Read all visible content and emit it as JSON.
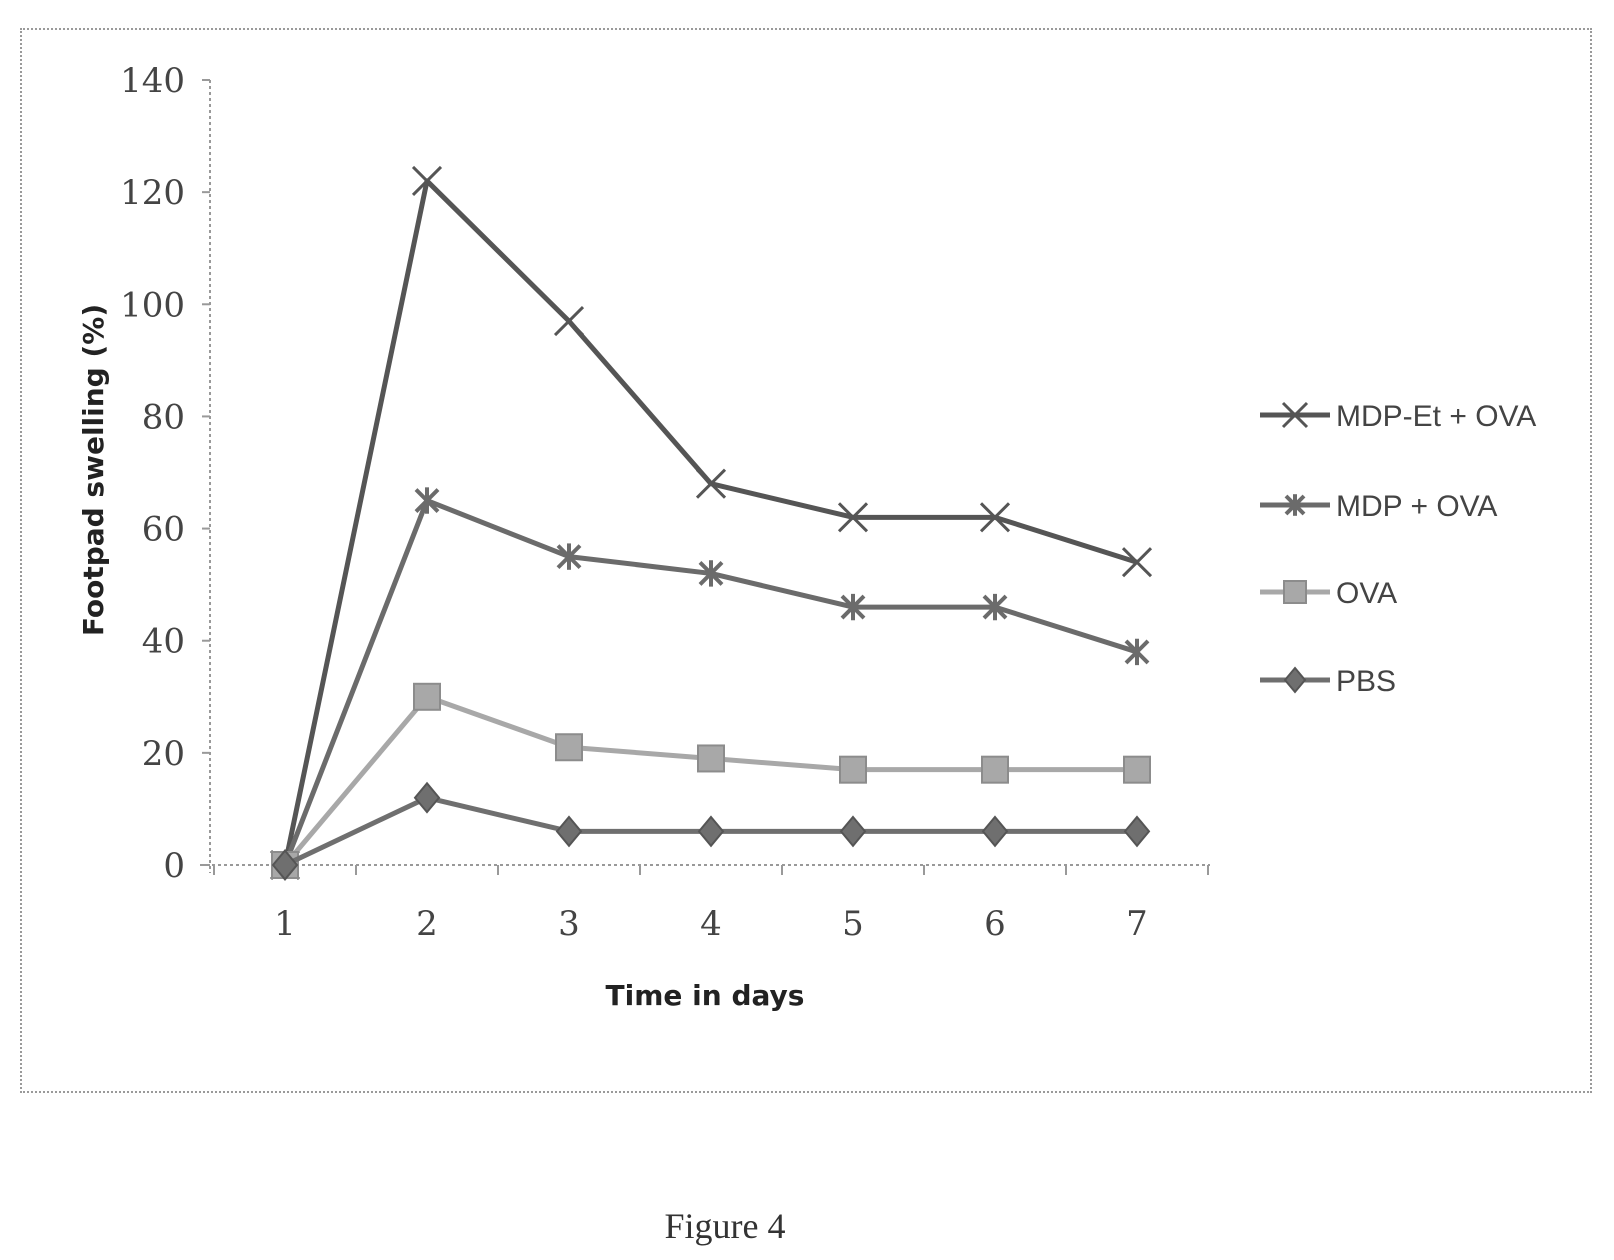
{
  "figure": {
    "caption": "Figure 4"
  },
  "chart_data": {
    "type": "line",
    "xlabel": "Time in days",
    "ylabel": "Footpad swelling (%)",
    "x": [
      1,
      2,
      3,
      4,
      5,
      6,
      7
    ],
    "ylim": [
      0,
      140
    ],
    "yticks": [
      0,
      20,
      40,
      60,
      80,
      100,
      120,
      140
    ],
    "grid": false,
    "legend_position": "right",
    "series": [
      {
        "name": "MDP-Et + OVA",
        "marker": "x",
        "color": "#555555",
        "values": [
          0,
          122,
          97,
          68,
          62,
          62,
          54
        ]
      },
      {
        "name": "MDP + OVA",
        "marker": "star",
        "color": "#6b6b6b",
        "values": [
          0,
          65,
          55,
          52,
          46,
          46,
          38
        ]
      },
      {
        "name": "OVA",
        "marker": "square",
        "color": "#a8a8a8",
        "values": [
          0,
          30,
          21,
          19,
          17,
          17,
          17
        ]
      },
      {
        "name": "PBS",
        "marker": "diamond",
        "color": "#6f6f6f",
        "values": [
          0,
          12,
          6,
          6,
          6,
          6,
          6
        ]
      }
    ]
  }
}
